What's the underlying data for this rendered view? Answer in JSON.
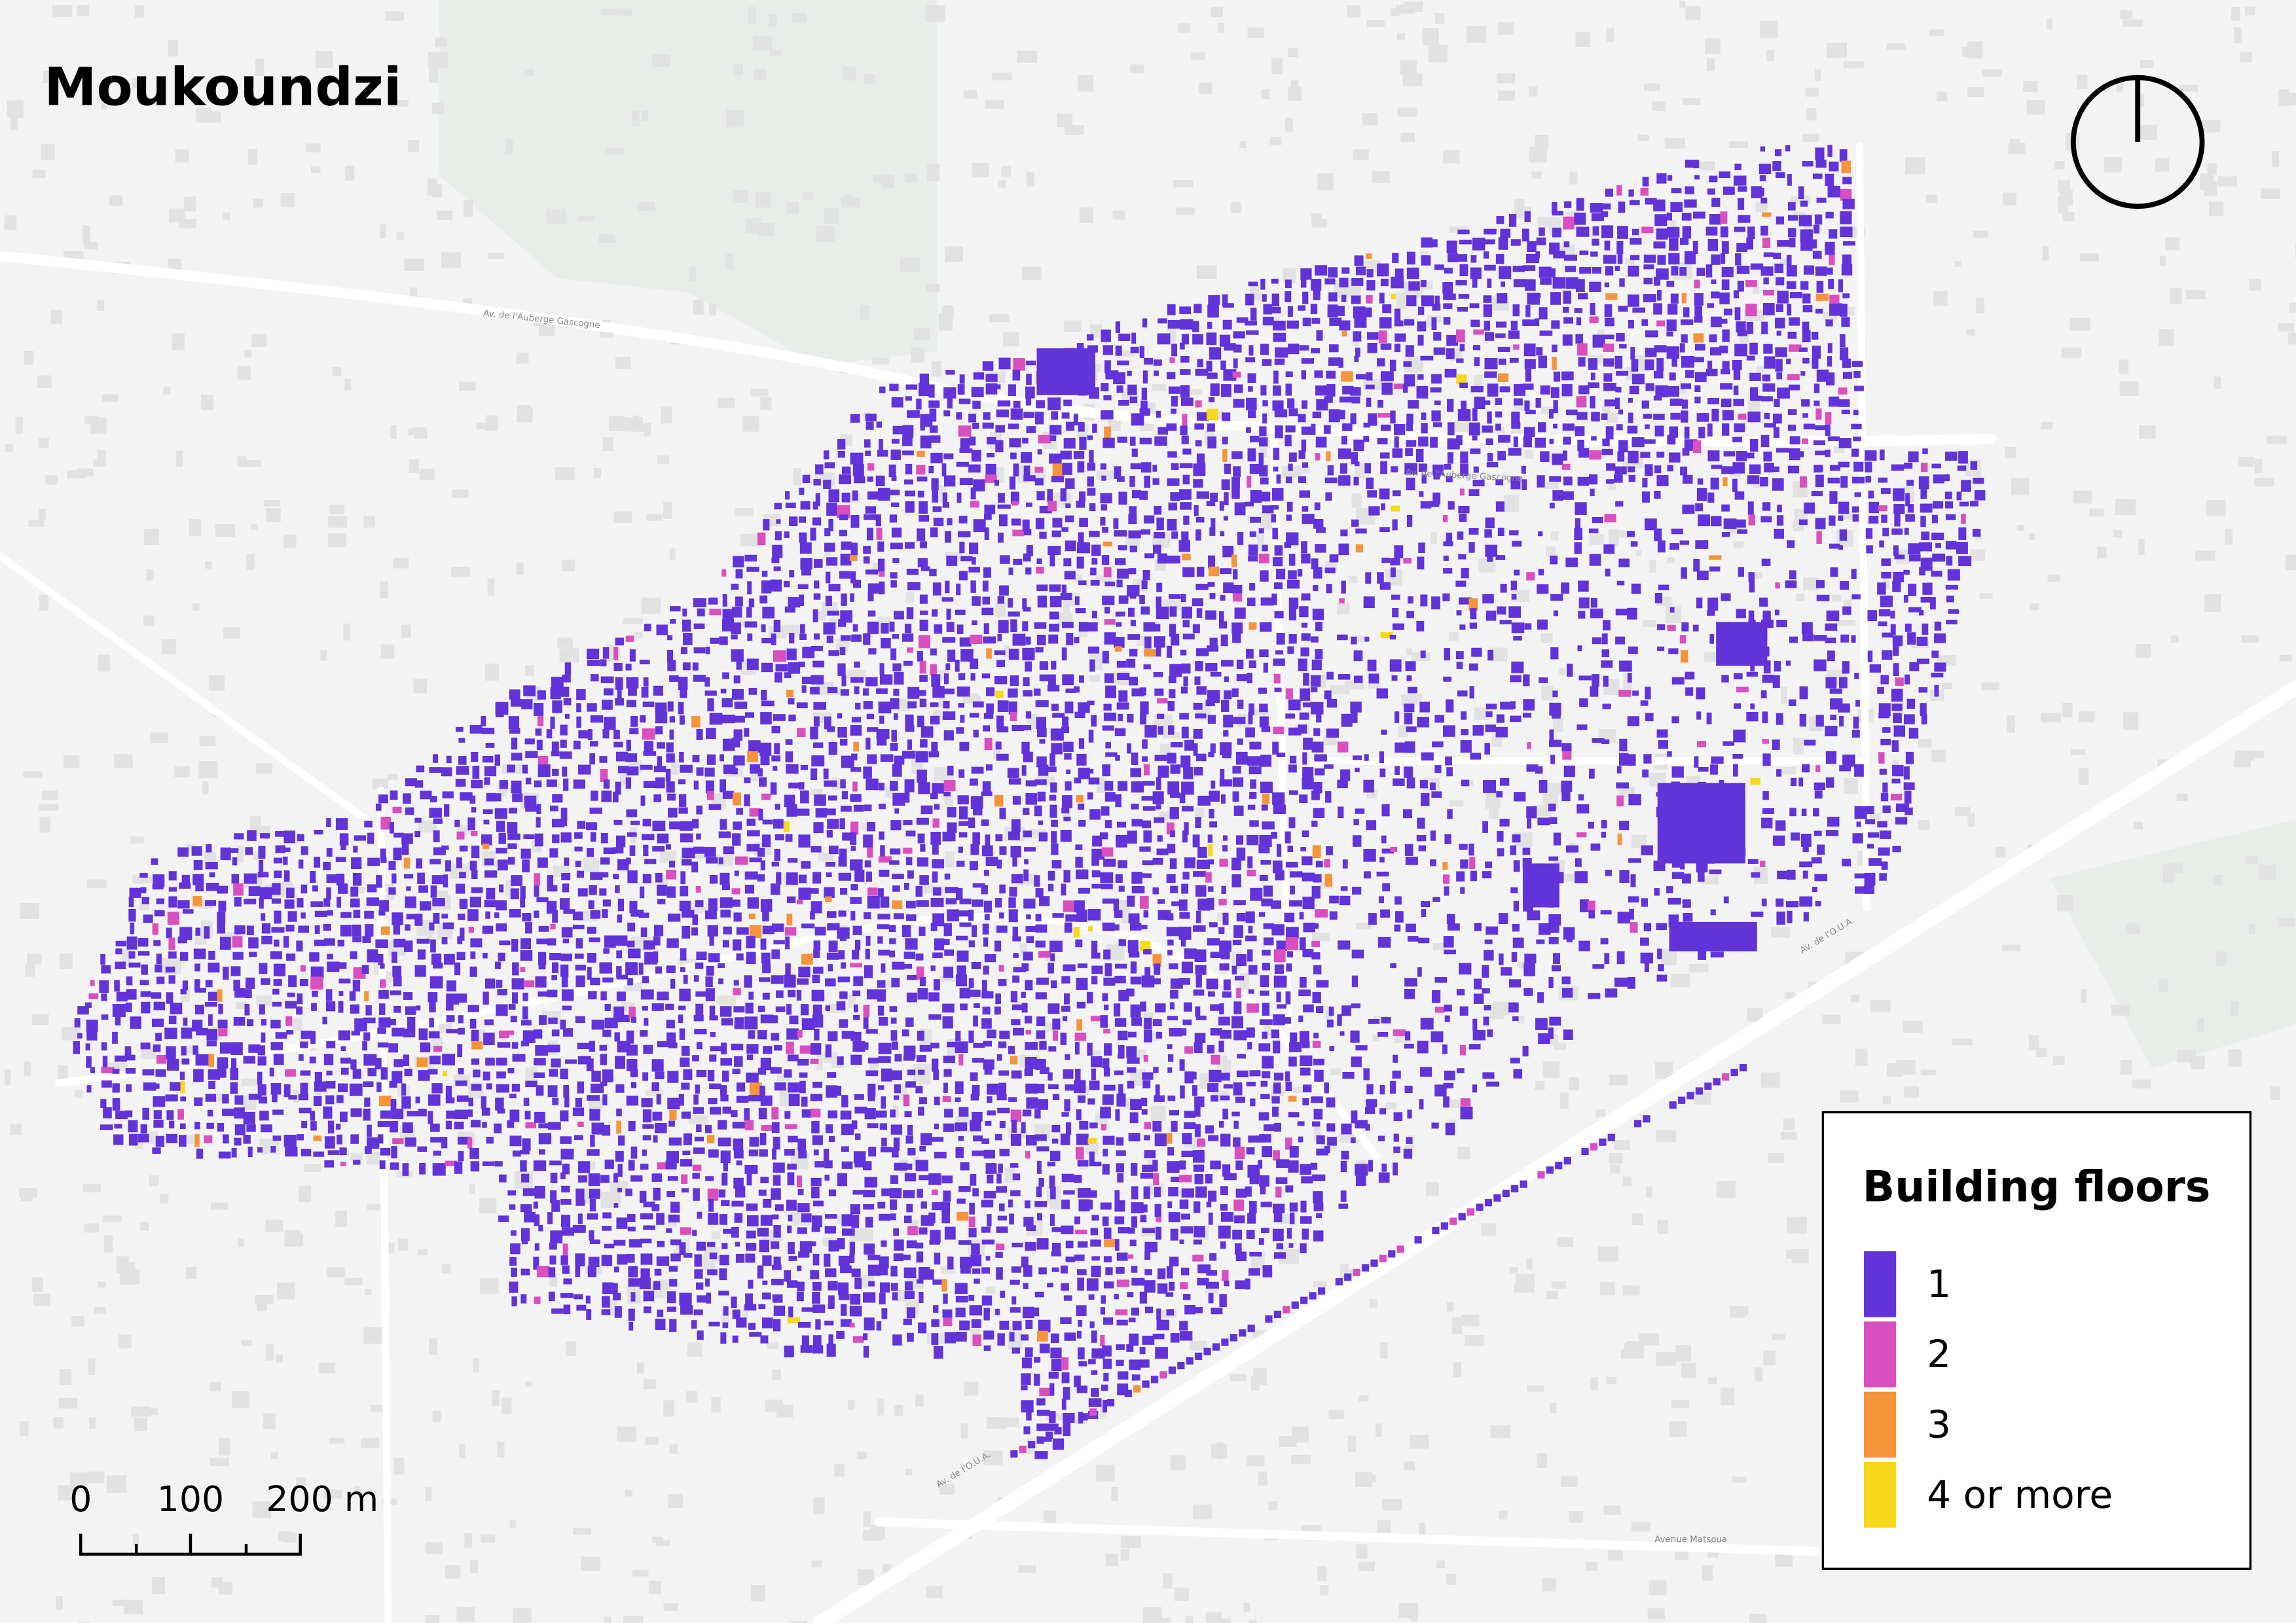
{
  "title": "Moukoundzi",
  "legend": {
    "title": "Building floors",
    "items": [
      {
        "label": "1",
        "color": "#6233d9"
      },
      {
        "label": "2",
        "color": "#d94fc0"
      },
      {
        "label": "3",
        "color": "#f5943a"
      },
      {
        "label": "4 or more",
        "color": "#f7d81a"
      }
    ]
  },
  "scale_bar": {
    "labels": [
      "0",
      "100",
      "200 m"
    ]
  },
  "streets": [
    "Av. de l'Auberge Gascogne",
    "Av. de l'O.U.A.",
    "Avenue Matsoua",
    "Av. de l'Auberge Gascogne",
    "Av. de l'O.U.A."
  ]
}
